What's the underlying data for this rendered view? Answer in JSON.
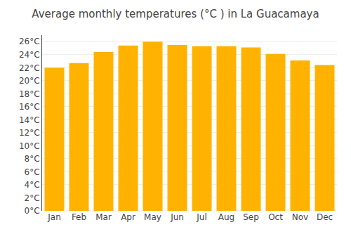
{
  "chart_data": {
    "type": "bar",
    "title": "Average monthly temperatures (°C ) in La Guacamaya",
    "categories": [
      "Jan",
      "Feb",
      "Mar",
      "Apr",
      "May",
      "Jun",
      "Jul",
      "Aug",
      "Sep",
      "Oct",
      "Nov",
      "Dec"
    ],
    "values": [
      22.0,
      22.7,
      24.4,
      25.4,
      26.0,
      25.5,
      25.3,
      25.3,
      25.1,
      24.1,
      23.1,
      22.4
    ],
    "color": "#FFB300",
    "ylim": [
      0,
      27
    ],
    "yticks": [
      {
        "value": 0,
        "label": "0°C"
      },
      {
        "value": 2,
        "label": "2°C"
      },
      {
        "value": 4,
        "label": "4°C"
      },
      {
        "value": 6,
        "label": "6°C"
      },
      {
        "value": 8,
        "label": "8°C"
      },
      {
        "value": 10,
        "label": "10°C"
      },
      {
        "value": 12,
        "label": "12°C"
      },
      {
        "value": 14,
        "label": "14°C"
      },
      {
        "value": 16,
        "label": "16°C"
      },
      {
        "value": 18,
        "label": "18°C"
      },
      {
        "value": 20,
        "label": "20°C"
      },
      {
        "value": 22,
        "label": "22°C"
      },
      {
        "value": 24,
        "label": "24°C"
      },
      {
        "value": 26,
        "label": "26°C"
      }
    ],
    "grid": true
  }
}
